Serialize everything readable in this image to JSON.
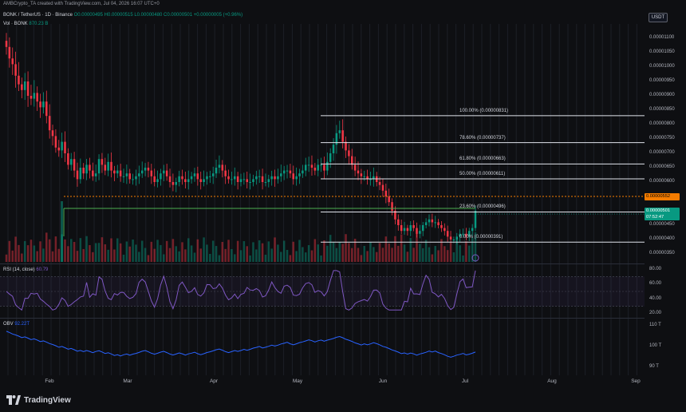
{
  "header": {
    "meta": "AMBCrypto_TA created with TradingView.com, Jul 04, 2026 16:07 UTC+0",
    "symbol": "BONK / TetherUS · 1D · Binance",
    "ohlc": "O0.00000495  H0.00000515  L0.00000480  C0.00000501  +0.00000005 (+0.96%)",
    "vol_label": "Vol · BONK",
    "vol_value": "870.23 B",
    "currency": "USDT"
  },
  "price_axis": {
    "labels": [
      "0.00001100",
      "0.00001050",
      "0.00001000",
      "0.00000950",
      "0.00000900",
      "0.00000850",
      "0.00000800",
      "0.00000750",
      "0.00000700",
      "0.00000650",
      "0.00000600",
      "0.00000450",
      "0.00000400",
      "0.00000350"
    ],
    "current_price": "0.00000501",
    "countdown": "07:52:47",
    "marked_price": "0.00000552"
  },
  "fib_levels": [
    {
      "label": "100.00% (0.00000831)",
      "price": 8.31e-06
    },
    {
      "label": "78.60% (0.00000737)",
      "price": 7.37e-06
    },
    {
      "label": "61.80% (0.00000663)",
      "price": 6.63e-06
    },
    {
      "label": "50.00% (0.00000611)",
      "price": 6.11e-06
    },
    {
      "label": "23.60% (0.00000496)",
      "price": 4.96e-06
    },
    {
      "label": "0.00% (0.00000391)",
      "price": 3.91e-06
    }
  ],
  "rsi": {
    "title": "RSI (14, close)",
    "value": "60.79",
    "axis": [
      "80.00",
      "60.00",
      "40.00",
      "20.00"
    ]
  },
  "obv": {
    "title": "OBV",
    "value": "92.22T",
    "axis": [
      "110 T",
      "100 T",
      "90 T"
    ]
  },
  "time_axis": [
    "Feb",
    "Mar",
    "Apr",
    "May",
    "Jun",
    "Jul",
    "Aug",
    "Sep"
  ],
  "brand": {
    "name": "TradingView"
  },
  "colors": {
    "up": "#089981",
    "down": "#f23645",
    "rsi": "#7e57c2",
    "obv": "#2962ff",
    "fib": "#ffffff",
    "green_line": "#4caf50",
    "marker": "#f57c00"
  },
  "chart_data": {
    "type": "candlestick",
    "note": "Daily BONK/USDT candles (approximate close path), Jan 1 – Jul 4",
    "close": [
      1.07e-05,
      1.03e-05,
      1.01e-05,
      9.7e-06,
      9.4e-06,
      9.2e-06,
      9.5e-06,
      9e-06,
      8.9e-06,
      9.1e-06,
      8.8e-06,
      8.6e-06,
      8.8e-06,
      8.3e-06,
      7.8e-06,
      7.6e-06,
      7.2e-06,
      7.1e-06,
      7.4e-06,
      7e-06,
      6.6e-06,
      6.8e-06,
      6.4e-06,
      6.1e-06,
      6.5e-06,
      6.3e-06,
      6.6e-06,
      6.4e-06,
      6.2e-06,
      6.3e-06,
      6.8e-06,
      6.6e-06,
      6.4e-06,
      6.7e-06,
      6.4e-06,
      6.3e-06,
      6.4e-06,
      6.2e-06,
      6.2e-06,
      6.3e-06,
      6.1e-06,
      6.1e-06,
      6.2e-06,
      6.3e-06,
      6.4e-06,
      6.5e-06,
      6.4e-06,
      6.2e-06,
      6e-06,
      6.1e-06,
      6.3e-06,
      6.4e-06,
      6.2e-06,
      6e-06,
      5.9e-06,
      6e-06,
      6.2e-06,
      6.1e-06,
      6e-06,
      6.1e-06,
      6.2e-06,
      6.3e-06,
      6.1e-06,
      6e-06,
      6.1e-06,
      6.2e-06,
      6.2e-06,
      6.3e-06,
      6.5e-06,
      6.6e-06,
      6.4e-06,
      6.2e-06,
      6.1e-06,
      6.1e-06,
      6.2e-06,
      6e-06,
      6.1e-06,
      6.1e-06,
      6e-06,
      6e-06,
      6.1e-06,
      6.2e-06,
      6.2e-06,
      6e-06,
      6e-06,
      6.1e-06,
      6.2e-06,
      6.1e-06,
      6.2e-06,
      6.3e-06,
      6.4e-06,
      6.4e-06,
      6.3e-06,
      6.1e-06,
      6.2e-06,
      6.3e-06,
      6.4e-06,
      6.6e-06,
      6.6e-06,
      6.5e-06,
      6.4e-06,
      6.6e-06,
      6.6e-06,
      6.4e-06,
      6.7e-06,
      7e-06,
      7.3e-06,
      7.7e-06,
      7.8e-06,
      7.4e-06,
      7.1e-06,
      6.9e-06,
      6.6e-06,
      6.4e-06,
      6.3e-06,
      6.2e-06,
      6.2e-06,
      6.1e-06,
      6.1e-06,
      6.2e-06,
      6e-06,
      5.9e-06,
      5.7e-06,
      5.5e-06,
      5.3e-06,
      5e-06,
      4.7e-06,
      4.5e-06,
      4.3e-06,
      4.4e-06,
      4.3e-06,
      4.5e-06,
      4.4e-06,
      4.2e-06,
      4.3e-06,
      4.5e-06,
      4.6e-06,
      4.7e-06,
      4.6e-06,
      4.6e-06,
      4.5e-06,
      4.4e-06,
      4.3e-06,
      4.1e-06,
      4e-06,
      4e-06,
      4.1e-06,
      4.2e-06,
      4.2e-06,
      4.1e-06,
      4.3e-06,
      4.4e-06,
      5e-06
    ]
  }
}
